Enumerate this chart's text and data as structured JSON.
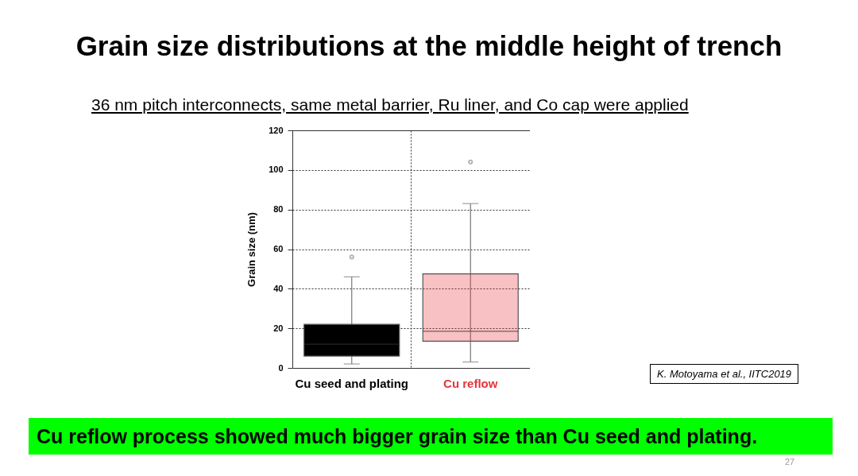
{
  "chart_data": {
    "type": "box",
    "title": "Grain size distributions at the middle height of trench",
    "subtitle": "36 nm pitch interconnects, same metal barrier, Ru liner, and Co cap were applied",
    "ylabel": "Grain size (nm)",
    "categories": [
      "Cu seed and plating",
      "Cu reflow"
    ],
    "boxes": [
      {
        "low": 2,
        "q1": 6,
        "median": 12,
        "q3": 22,
        "high": 46,
        "outliers": [
          56
        ]
      },
      {
        "low": 3,
        "q1": 13.5,
        "median": 18.5,
        "q3": 47.5,
        "high": 83,
        "outliers": [
          104
        ]
      }
    ],
    "colors": [
      "#000000",
      "#e8323c"
    ],
    "ylim": [
      0,
      120
    ],
    "yticks": [
      0,
      20,
      40,
      60,
      80,
      100,
      120
    ],
    "grid": true,
    "annotations": [
      "K. Motoyama et al., IITC2019",
      "Cu reflow process showed much bigger grain size than Cu seed and plating.",
      "27"
    ]
  }
}
